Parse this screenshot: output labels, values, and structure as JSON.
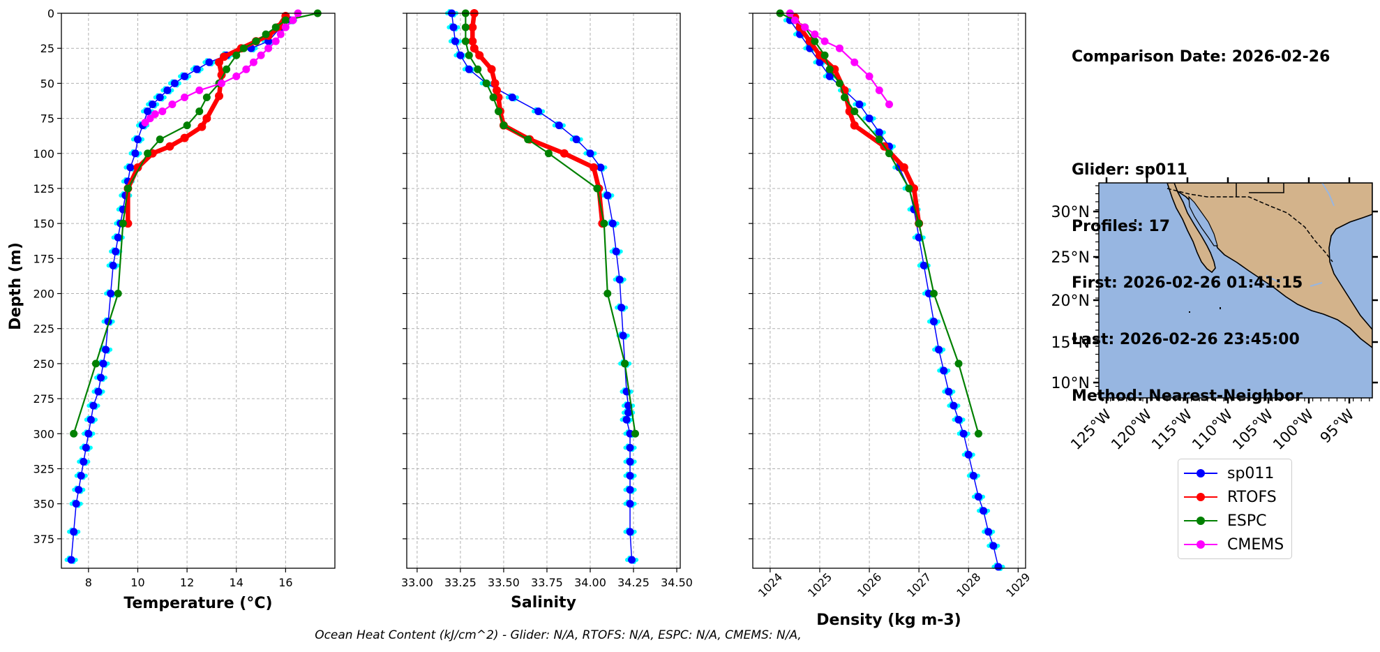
{
  "info": {
    "comparison_date": "Comparison Date: 2026-02-26",
    "glider": "Glider: sp011",
    "profiles": "Profiles: 17",
    "first": "First: 2026-02-26 01:41:15",
    "last": "Last: 2026-02-26 23:45:00",
    "method": "Method: Nearest-Neighbor"
  },
  "footer": "Ocean Heat Content (kJ/cm^2) - Glider: N/A,  RTOFS: N/A,  ESPC: N/A,  CMEMS: N/A,",
  "legend": [
    {
      "name": "sp011",
      "color": "#0000ff"
    },
    {
      "name": "RTOFS",
      "color": "#ff0000"
    },
    {
      "name": "ESPC",
      "color": "#008000"
    },
    {
      "name": "CMEMS",
      "color": "#ff00ff"
    }
  ],
  "colors": {
    "glider": "#0000ff",
    "glider_scatter": "#00ffff",
    "rtofs": "#ff0000",
    "espc": "#008000",
    "cmems": "#ff00ff",
    "ocean": "#97b6e1",
    "land": "#d3b38b"
  },
  "chart_data": [
    {
      "type": "line",
      "xlabel": "Temperature (°C)",
      "ylabel": "Depth (m)",
      "xlim": [
        6.9,
        18.0
      ],
      "ylim": [
        396,
        0
      ],
      "xticks": [
        8,
        10,
        12,
        14,
        16
      ],
      "yticks": [
        0,
        25,
        50,
        75,
        100,
        125,
        150,
        175,
        200,
        225,
        250,
        275,
        300,
        325,
        350,
        375
      ],
      "grid": true,
      "series": [
        {
          "name": "sp011",
          "x": [
            16.2,
            15.8,
            15.3,
            14.6,
            13.6,
            12.9,
            12.4,
            11.9,
            11.5,
            11.2,
            10.9,
            10.6,
            10.4,
            10.2,
            10.0,
            9.9,
            9.7,
            9.6,
            9.5,
            9.4,
            9.3,
            9.2,
            9.1,
            9.0,
            8.9,
            8.8,
            8.7,
            8.6,
            8.5,
            8.4,
            8.2,
            8.1,
            8.0,
            7.9,
            7.8,
            7.7,
            7.6,
            7.5,
            7.4,
            7.3
          ],
          "y": [
            5,
            10,
            20,
            25,
            30,
            35,
            40,
            45,
            50,
            55,
            60,
            65,
            70,
            80,
            90,
            100,
            110,
            120,
            130,
            140,
            150,
            160,
            170,
            180,
            200,
            220,
            240,
            250,
            260,
            270,
            280,
            290,
            300,
            310,
            320,
            330,
            340,
            350,
            370,
            390
          ]
        },
        {
          "name": "RTOFS",
          "x": [
            16.0,
            15.7,
            15.3,
            14.8,
            14.2,
            13.5,
            13.3,
            13.4,
            13.3,
            12.8,
            12.6,
            11.9,
            11.3,
            10.6,
            10.0,
            9.6,
            9.6
          ],
          "y": [
            2,
            10,
            16,
            20,
            25,
            31,
            35,
            44,
            59,
            75,
            81,
            89,
            95,
            100,
            110,
            125,
            150
          ]
        },
        {
          "name": "ESPC",
          "x": [
            17.3,
            16.0,
            15.6,
            15.2,
            14.8,
            14.3,
            14.0,
            13.6,
            13.3,
            12.8,
            12.5,
            12.0,
            10.9,
            10.4,
            9.6,
            9.4,
            9.2,
            8.3,
            7.4
          ],
          "y": [
            0,
            5,
            10,
            15,
            20,
            25,
            30,
            40,
            50,
            60,
            70,
            80,
            90,
            100,
            125,
            150,
            200,
            250,
            300
          ]
        },
        {
          "name": "CMEMS",
          "x": [
            16.5,
            16.3,
            16.0,
            15.8,
            15.6,
            15.3,
            15.0,
            14.7,
            14.4,
            14.0,
            13.4,
            12.5,
            11.9,
            11.4,
            11.0,
            10.7,
            10.5,
            10.3
          ],
          "y": [
            0,
            5,
            10,
            15,
            20,
            25,
            30,
            35,
            40,
            45,
            50,
            55,
            60,
            65,
            70,
            72,
            75,
            78
          ]
        }
      ]
    },
    {
      "type": "line",
      "xlabel": "Salinity",
      "ylim": [
        396,
        0
      ],
      "xlim": [
        32.94,
        34.52
      ],
      "xticks": [
        33.0,
        33.25,
        33.5,
        33.75,
        34.0,
        34.25,
        34.5
      ],
      "grid": true,
      "series": [
        {
          "name": "sp011",
          "x": [
            33.2,
            33.21,
            33.22,
            33.25,
            33.3,
            33.4,
            33.55,
            33.7,
            33.82,
            33.92,
            34.0,
            34.06,
            34.1,
            34.13,
            34.15,
            34.17,
            34.18,
            34.19,
            34.2,
            34.21,
            34.22,
            34.22,
            34.21,
            34.23,
            34.23,
            34.23,
            34.23,
            34.23,
            34.23,
            34.23,
            34.24
          ],
          "y": [
            0,
            10,
            20,
            30,
            40,
            50,
            60,
            70,
            80,
            90,
            100,
            110,
            130,
            150,
            170,
            190,
            210,
            230,
            250,
            270,
            280,
            285,
            290,
            300,
            310,
            320,
            330,
            340,
            350,
            370,
            390
          ]
        },
        {
          "name": "RTOFS",
          "x": [
            33.33,
            33.32,
            33.32,
            33.33,
            33.36,
            33.43,
            33.45,
            33.46,
            33.47,
            33.48,
            33.5,
            33.65,
            33.85,
            34.02,
            34.05,
            34.07
          ],
          "y": [
            0,
            10,
            20,
            25,
            30,
            40,
            50,
            55,
            60,
            70,
            80,
            90,
            100,
            110,
            125,
            150
          ]
        },
        {
          "name": "ESPC",
          "x": [
            33.28,
            33.28,
            33.28,
            33.3,
            33.35,
            33.4,
            33.44,
            33.47,
            33.5,
            33.64,
            33.76,
            34.04,
            34.08,
            34.1,
            34.2,
            34.26
          ],
          "y": [
            0,
            10,
            20,
            30,
            40,
            50,
            60,
            70,
            80,
            90,
            100,
            125,
            150,
            200,
            250,
            300
          ]
        },
        {
          "name": "CMEMS",
          "x": [],
          "y": []
        }
      ]
    },
    {
      "type": "line",
      "xlabel": "Density (kg m-3)",
      "ylim": [
        396,
        0
      ],
      "xlim": [
        1023.65,
        1029.15
      ],
      "xticks": [
        1024,
        1025,
        1026,
        1027,
        1028,
        1029
      ],
      "grid": true,
      "series": [
        {
          "name": "sp011",
          "x": [
            1024.4,
            1024.6,
            1024.8,
            1025.0,
            1025.2,
            1025.5,
            1025.8,
            1026.0,
            1026.2,
            1026.4,
            1026.6,
            1026.8,
            1026.9,
            1027.0,
            1027.1,
            1027.2,
            1027.3,
            1027.4,
            1027.5,
            1027.6,
            1027.7,
            1027.8,
            1027.9,
            1028.0,
            1028.1,
            1028.2,
            1028.3,
            1028.4,
            1028.5,
            1028.6
          ],
          "y": [
            5,
            15,
            25,
            35,
            45,
            55,
            65,
            75,
            85,
            95,
            110,
            125,
            140,
            160,
            180,
            200,
            220,
            240,
            255,
            270,
            280,
            290,
            300,
            315,
            330,
            345,
            355,
            370,
            380,
            395
          ]
        },
        {
          "name": "RTOFS",
          "x": [
            1024.5,
            1024.6,
            1024.8,
            1025.0,
            1025.3,
            1025.5,
            1025.6,
            1025.7,
            1026.3,
            1026.7,
            1026.9,
            1027.0
          ],
          "y": [
            3,
            10,
            20,
            30,
            40,
            55,
            70,
            80,
            95,
            110,
            125,
            150
          ]
        },
        {
          "name": "ESPC",
          "x": [
            1024.2,
            1024.5,
            1024.7,
            1024.9,
            1025.1,
            1025.2,
            1025.4,
            1025.5,
            1025.7,
            1026.2,
            1026.4,
            1026.8,
            1027.0,
            1027.3,
            1027.8,
            1028.2
          ],
          "y": [
            0,
            5,
            10,
            20,
            30,
            40,
            50,
            60,
            70,
            90,
            100,
            125,
            150,
            200,
            250,
            300
          ]
        },
        {
          "name": "CMEMS",
          "x": [
            1024.4,
            1024.5,
            1024.7,
            1024.9,
            1025.1,
            1025.4,
            1025.7,
            1026.0,
            1026.2,
            1026.4
          ],
          "y": [
            0,
            5,
            10,
            15,
            20,
            25,
            35,
            45,
            55,
            65
          ]
        }
      ]
    },
    {
      "type": "map",
      "lat_labels": [
        "30°N",
        "25°N",
        "20°N",
        "15°N",
        "10°N"
      ],
      "lon_labels": [
        "125°W",
        "120°W",
        "115°W",
        "110°W",
        "105°W",
        "100°W",
        "95°W"
      ]
    }
  ]
}
